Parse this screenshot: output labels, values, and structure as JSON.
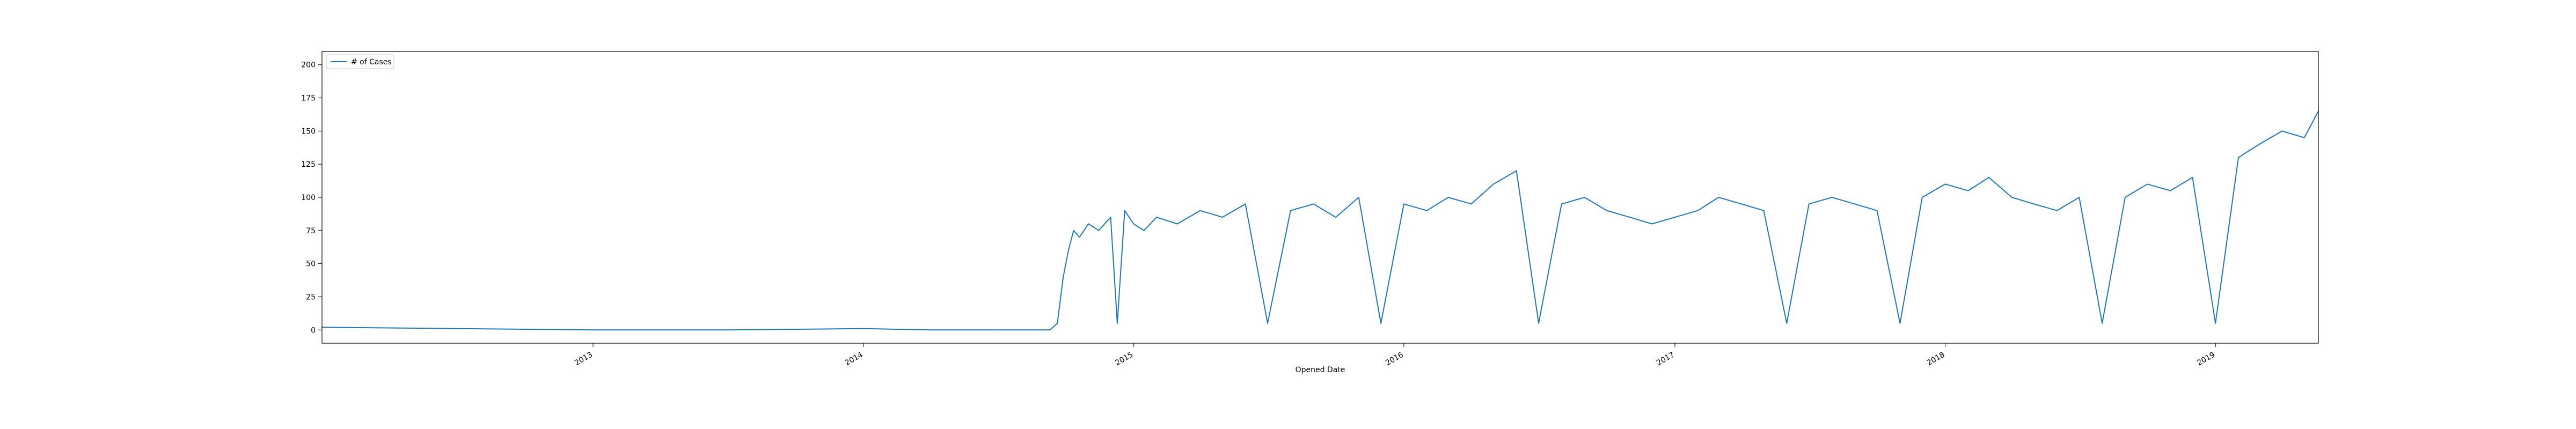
{
  "chart_data": {
    "type": "line",
    "title": "",
    "xlabel": "Opened Date",
    "ylabel": "",
    "x_range": [
      "2012-01-01",
      "2019-05-20"
    ],
    "ylim": [
      -10,
      210
    ],
    "y_ticks": [
      0,
      25,
      50,
      75,
      100,
      125,
      150,
      175,
      200
    ],
    "x_ticks": [
      {
        "date": "2013-01-01",
        "label": "2013"
      },
      {
        "date": "2014-01-01",
        "label": "2014"
      },
      {
        "date": "2015-01-01",
        "label": "2015"
      },
      {
        "date": "2016-01-01",
        "label": "2016"
      },
      {
        "date": "2017-01-01",
        "label": "2017"
      },
      {
        "date": "2018-01-01",
        "label": "2018"
      },
      {
        "date": "2019-01-01",
        "label": "2019"
      }
    ],
    "grid": false,
    "legend_position": "top-left",
    "series": [
      {
        "name": "# of Cases",
        "color": "#1f77b4",
        "x": [
          "2012-01-01",
          "2012-07-01",
          "2013-01-01",
          "2013-07-01",
          "2014-01-01",
          "2014-04-01",
          "2014-07-01",
          "2014-09-10",
          "2014-09-20",
          "2014-09-28",
          "2014-10-05",
          "2014-10-12",
          "2014-10-20",
          "2014-11-01",
          "2014-11-15",
          "2014-12-01",
          "2014-12-10",
          "2014-12-20",
          "2015-01-01",
          "2015-01-15",
          "2015-02-01",
          "2015-03-01",
          "2015-04-01",
          "2015-05-01",
          "2015-06-01",
          "2015-07-01",
          "2015-08-01",
          "2015-09-01",
          "2015-10-01",
          "2015-11-01",
          "2015-12-01",
          "2016-01-01",
          "2016-02-01",
          "2016-03-01",
          "2016-04-01",
          "2016-05-01",
          "2016-06-01",
          "2016-07-01",
          "2016-08-01",
          "2016-09-01",
          "2016-10-01",
          "2016-11-01",
          "2016-12-01",
          "2017-01-01",
          "2017-02-01",
          "2017-03-01",
          "2017-04-01",
          "2017-05-01",
          "2017-06-01",
          "2017-07-01",
          "2017-08-01",
          "2017-09-01",
          "2017-10-01",
          "2017-11-01",
          "2017-12-01",
          "2018-01-01",
          "2018-02-01",
          "2018-03-01",
          "2018-04-01",
          "2018-05-01",
          "2018-06-01",
          "2018-07-01",
          "2018-08-01",
          "2018-09-01",
          "2018-10-01",
          "2018-11-01",
          "2018-12-01",
          "2019-01-01",
          "2019-02-01",
          "2019-03-01",
          "2019-04-01",
          "2019-05-01",
          "2019-05-20"
        ],
        "values": [
          2,
          1,
          0,
          0,
          1,
          0,
          0,
          0,
          5,
          40,
          60,
          75,
          70,
          80,
          75,
          85,
          5,
          90,
          80,
          75,
          85,
          80,
          90,
          85,
          95,
          5,
          90,
          95,
          85,
          100,
          5,
          95,
          90,
          100,
          95,
          110,
          120,
          5,
          95,
          100,
          90,
          85,
          80,
          85,
          90,
          100,
          95,
          90,
          5,
          95,
          100,
          95,
          90,
          5,
          100,
          110,
          105,
          115,
          100,
          95,
          90,
          100,
          5,
          100,
          110,
          105,
          115,
          5,
          130,
          140,
          150,
          145,
          165
        ]
      }
    ]
  }
}
